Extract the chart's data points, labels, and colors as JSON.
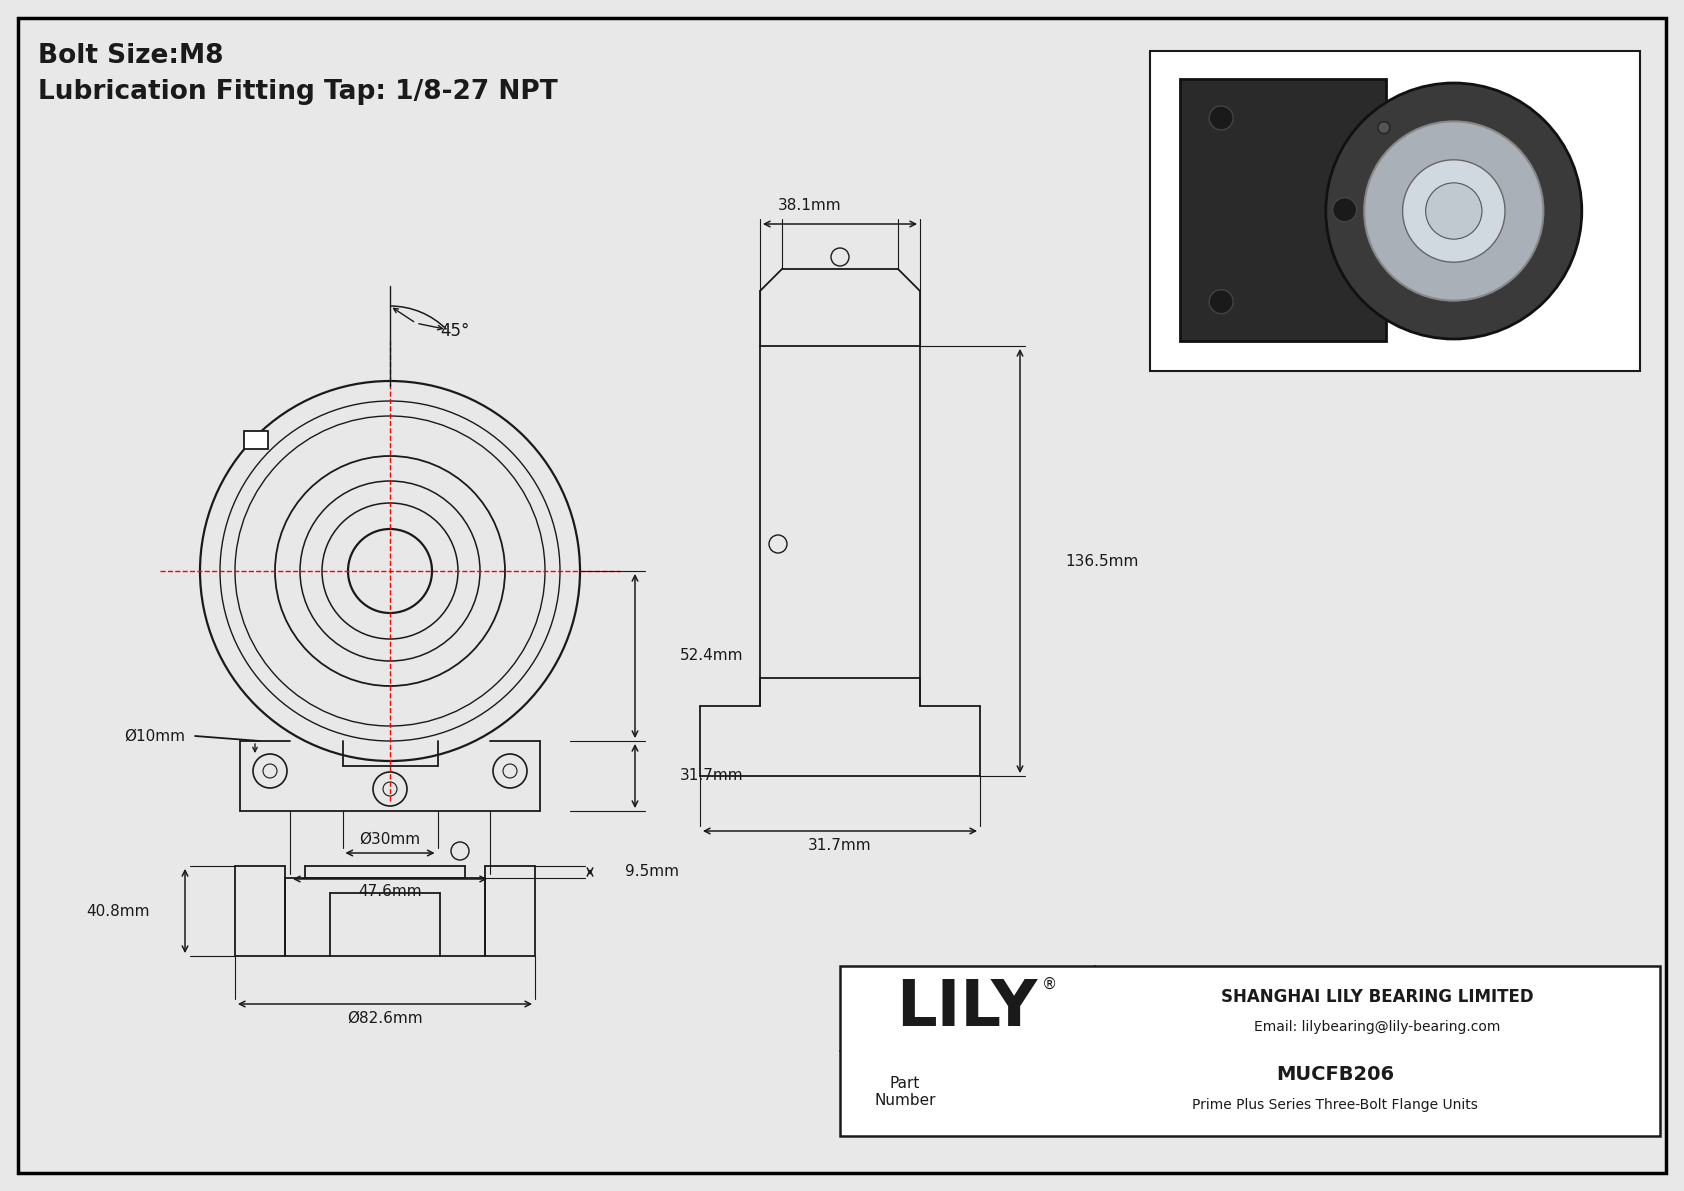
{
  "bg_color": "#e8e8e8",
  "border_color": "#000000",
  "line_color": "#1a1a1a",
  "red_line_color": "#ff0000",
  "title1": "Bolt Size:M8",
  "title2": "Lubrication Fitting Tap: 1/8-27 NPT",
  "dim_38_1": "38.1mm",
  "dim_136_5": "136.5mm",
  "dim_52_4": "52.4mm",
  "dim_31_7a": "31.7mm",
  "dim_31_7b": "31.7mm",
  "dim_10": "Ø10mm",
  "dim_30": "Ø30mm",
  "dim_47_6": "47.6mm",
  "dim_82_6": "Ø82.6mm",
  "dim_40_8": "40.8mm",
  "dim_9_5": "9.5mm",
  "dim_45": "45°",
  "lily_text": "LILY",
  "registered": "®",
  "company": "SHANGHAI LILY BEARING LIMITED",
  "email": "Email: lilybearing@lily-bearing.com",
  "part_number_label": "Part\nNumber",
  "part_number_value": "MUCFB206",
  "series_text": "Prime Plus Series Three-Bolt Flange Units"
}
